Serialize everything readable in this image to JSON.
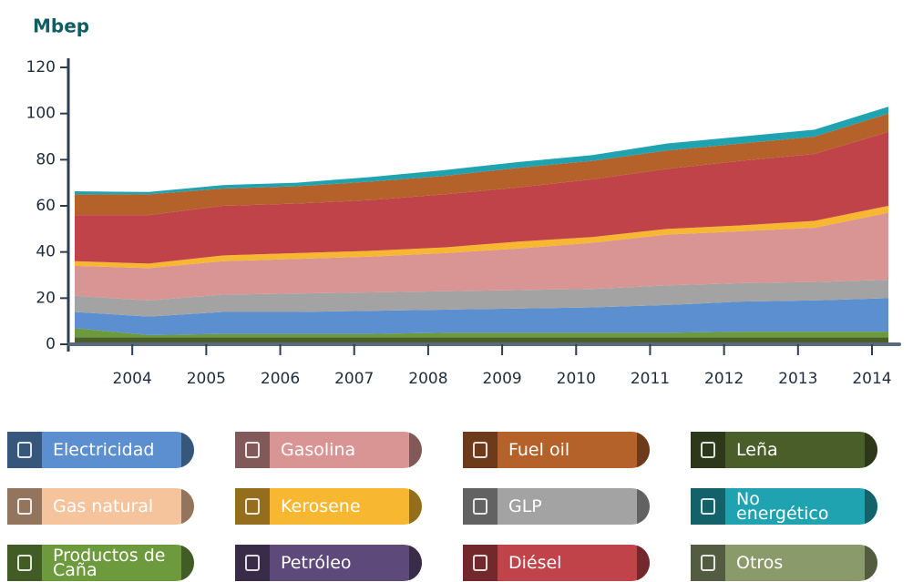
{
  "chart_data": {
    "type": "area",
    "y_label": "Mbep",
    "categories": [
      null,
      "2004",
      "2005",
      "2006",
      "2007",
      "2008",
      "2009",
      "2010",
      "2011",
      "2012",
      "2013",
      "2014"
    ],
    "ylim": [
      0,
      120
    ],
    "yticks": [
      0,
      20,
      40,
      60,
      80,
      100,
      120
    ],
    "series": [
      {
        "name": "Leña",
        "color": "#4a5e2a",
        "values": [
          3,
          3,
          3,
          3,
          3,
          3,
          3,
          3,
          3,
          3,
          3,
          3
        ]
      },
      {
        "name": "Productos de Caña",
        "color": "#6c9a3c",
        "values": [
          4,
          1,
          1.5,
          1.5,
          1.5,
          2,
          2,
          2,
          2,
          2.5,
          2.5,
          2.5
        ]
      },
      {
        "name": "Otros",
        "color": "#8a9a6a",
        "values": [
          0,
          0,
          0,
          0,
          0,
          0,
          0,
          0,
          0,
          0,
          0,
          0
        ]
      },
      {
        "name": "Petróleo",
        "color": "#5e4a7a",
        "values": [
          0,
          0,
          0,
          0,
          0,
          0,
          0,
          0,
          0,
          0,
          0,
          0
        ]
      },
      {
        "name": "Electricidad",
        "color": "#5b8fcf",
        "values": [
          7,
          8,
          9.5,
          9.5,
          10,
          10,
          10.5,
          11,
          12,
          13,
          13.5,
          14.5
        ]
      },
      {
        "name": "GLP",
        "color": "#a3a3a3",
        "values": [
          7,
          7,
          7.5,
          8,
          8,
          8,
          8,
          8,
          8.5,
          8,
          8,
          8
        ]
      },
      {
        "name": "Gas natural",
        "color": "#f5c39c",
        "values": [
          0,
          0,
          0,
          0,
          0,
          0,
          0,
          0,
          0,
          0,
          0,
          0
        ]
      },
      {
        "name": "Gasolina",
        "color": "#d99494",
        "values": [
          13,
          14,
          14.5,
          15,
          15.5,
          16.5,
          18,
          20,
          22,
          22.5,
          23.5,
          29
        ]
      },
      {
        "name": "Kerosene",
        "color": "#f8b731",
        "values": [
          2,
          2,
          2.5,
          2.5,
          2.5,
          2.5,
          3,
          2.5,
          2.5,
          2.5,
          3,
          3
        ]
      },
      {
        "name": "Diésel",
        "color": "#c0434a",
        "values": [
          20,
          21,
          21.5,
          21.5,
          22,
          23,
          23.5,
          25,
          26,
          28,
          29,
          32
        ]
      },
      {
        "name": "Fuel oil",
        "color": "#b5622a",
        "values": [
          9,
          9,
          7.5,
          7.5,
          8,
          8,
          8.5,
          8,
          8,
          7.5,
          7.5,
          8
        ]
      },
      {
        "name": "No energético",
        "color": "#1fa3b0",
        "values": [
          1.3,
          1,
          1.5,
          1.5,
          2,
          2.5,
          2.5,
          2.5,
          3,
          3,
          3,
          3
        ]
      }
    ]
  }
}
